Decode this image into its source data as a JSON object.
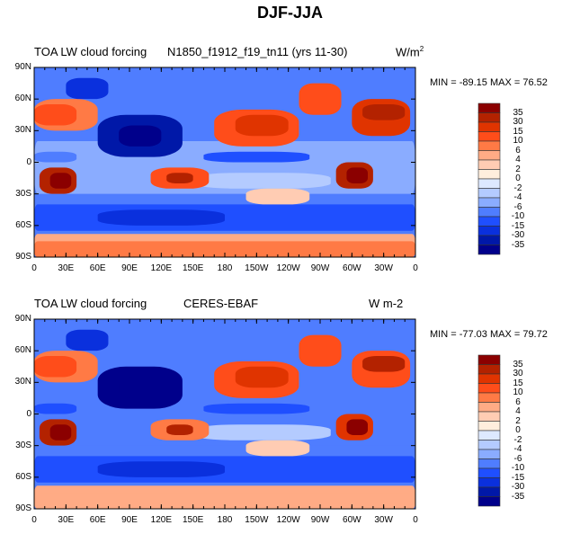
{
  "figure_title": "DJF-JJA",
  "panels": [
    {
      "left_title": "TOA LW cloud forcing",
      "center_title": "N1850_f1912_f19_tn11 (yrs 11-30)",
      "units": "W/m2",
      "units_base": "W/m",
      "units_sup": "2",
      "min_label": "MIN = -89.15",
      "max_label": "MAX =  76.52",
      "min": -89.15,
      "max": 76.52
    },
    {
      "left_title": "TOA LW cloud forcing",
      "center_title": "CERES-EBAF",
      "units": "W m-2",
      "min_label": "MIN = -77.03",
      "max_label": "MAX =  79.72",
      "min": -77.03,
      "max": 79.72
    }
  ],
  "lat_labels": [
    "90N",
    "60N",
    "30N",
    "0",
    "30S",
    "60S",
    "90S"
  ],
  "lon_labels": [
    "0",
    "30E",
    "60E",
    "90E",
    "120E",
    "150E",
    "180",
    "150W",
    "120W",
    "90W",
    "60W",
    "30W",
    "0"
  ],
  "colorbar": {
    "levels": [
      "35",
      "30",
      "15",
      "10",
      "6",
      "4",
      "2",
      "0",
      "-2",
      "-4",
      "-6",
      "-10",
      "-15",
      "-30",
      "-35"
    ],
    "colors": [
      "#8b0000",
      "#b32200",
      "#e03400",
      "#ff4d1a",
      "#ff7a45",
      "#ffab85",
      "#ffccb3",
      "#ffeedd",
      "#dde9ff",
      "#b4cbff",
      "#8aacff",
      "#4f7dff",
      "#1f4fff",
      "#0a30dd",
      "#0018a8",
      "#00008b"
    ]
  }
}
